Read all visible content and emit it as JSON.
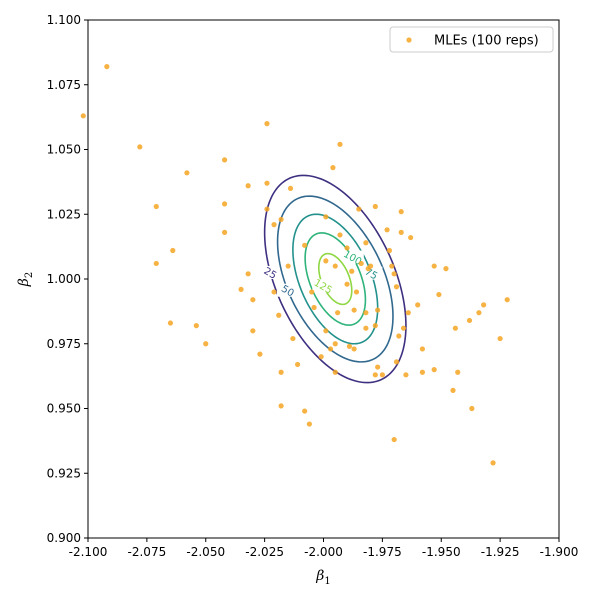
{
  "chart_data": {
    "type": "scatter",
    "title": "",
    "xlabel": "β",
    "xlabel_sub": "1",
    "ylabel": "β",
    "ylabel_sub": "2",
    "xlim": [
      -2.1,
      -1.9
    ],
    "ylim": [
      0.9,
      1.1
    ],
    "x_ticks": [
      "-2.100",
      "-2.075",
      "-2.050",
      "-2.025",
      "-2.000",
      "-1.975",
      "-1.950",
      "-1.925",
      "-1.900"
    ],
    "y_ticks": [
      "0.900",
      "0.925",
      "0.950",
      "0.975",
      "1.000",
      "1.025",
      "1.050",
      "1.075",
      "1.100"
    ],
    "x_tick_values": [
      -2.1,
      -2.075,
      -2.05,
      -2.025,
      -2.0,
      -1.975,
      -1.95,
      -1.925,
      -1.9
    ],
    "y_tick_values": [
      0.9,
      0.925,
      0.95,
      0.975,
      1.0,
      1.025,
      1.05,
      1.075,
      1.1
    ],
    "grid": false,
    "legend": {
      "position": "top-right",
      "entries": [
        {
          "label": "MLEs (100 reps)",
          "color": "#f5a623"
        }
      ]
    },
    "series": [
      {
        "name": "MLEs (100 reps)",
        "color": "#f5a623",
        "points": [
          [
            -2.102,
            1.063
          ],
          [
            -2.092,
            1.082
          ],
          [
            -2.078,
            1.051
          ],
          [
            -2.071,
            1.028
          ],
          [
            -2.071,
            1.006
          ],
          [
            -2.064,
            1.011
          ],
          [
            -2.065,
            0.983
          ],
          [
            -2.058,
            1.041
          ],
          [
            -2.054,
            0.982
          ],
          [
            -2.05,
            0.975
          ],
          [
            -2.042,
            1.046
          ],
          [
            -2.042,
            1.029
          ],
          [
            -2.042,
            1.018
          ],
          [
            -2.035,
            0.996
          ],
          [
            -2.032,
            1.036
          ],
          [
            -2.032,
            1.002
          ],
          [
            -2.03,
            0.992
          ],
          [
            -2.03,
            0.98
          ],
          [
            -2.027,
            0.971
          ],
          [
            -2.024,
            1.06
          ],
          [
            -2.024,
            1.037
          ],
          [
            -2.024,
            1.027
          ],
          [
            -2.021,
            1.021
          ],
          [
            -2.021,
            0.995
          ],
          [
            -2.019,
            0.986
          ],
          [
            -2.018,
            1.023
          ],
          [
            -2.018,
            0.964
          ],
          [
            -2.018,
            0.951
          ],
          [
            -2.014,
            1.035
          ],
          [
            -2.013,
            0.977
          ],
          [
            -2.011,
            0.967
          ],
          [
            -2.008,
            1.013
          ],
          [
            -2.008,
            0.949
          ],
          [
            -2.006,
            0.944
          ],
          [
            -2.004,
            0.989
          ],
          [
            -2.001,
            0.97
          ],
          [
            -1.999,
            1.024
          ],
          [
            -1.999,
            1.007
          ],
          [
            -1.999,
            0.98
          ],
          [
            -1.997,
            0.973
          ],
          [
            -1.996,
            1.043
          ],
          [
            -1.995,
            1.005
          ],
          [
            -1.995,
            0.975
          ],
          [
            -1.995,
            0.964
          ],
          [
            -1.994,
            0.987
          ],
          [
            -1.993,
            1.052
          ],
          [
            -1.993,
            1.017
          ],
          [
            -1.99,
            1.012
          ],
          [
            -1.989,
            0.974
          ],
          [
            -1.988,
            1.003
          ],
          [
            -1.987,
            0.988
          ],
          [
            -1.987,
            0.973
          ],
          [
            -1.986,
            0.995
          ],
          [
            -1.985,
            1.027
          ],
          [
            -1.984,
            1.006
          ],
          [
            -1.982,
            0.981
          ],
          [
            -1.982,
            0.987
          ],
          [
            -1.982,
            1.014
          ],
          [
            -1.981,
            1.004
          ],
          [
            -1.98,
            1.005
          ],
          [
            -1.978,
            1.028
          ],
          [
            -1.978,
            0.982
          ],
          [
            -1.978,
            0.963
          ],
          [
            -1.977,
            0.988
          ],
          [
            -1.977,
            0.966
          ],
          [
            -1.975,
            0.963
          ],
          [
            -1.973,
            1.019
          ],
          [
            -1.972,
            1.011
          ],
          [
            -1.971,
            1.005
          ],
          [
            -1.97,
            1.002
          ],
          [
            -1.97,
            0.938
          ],
          [
            -1.969,
            0.997
          ],
          [
            -1.969,
            0.968
          ],
          [
            -1.968,
            0.978
          ],
          [
            -1.967,
            1.026
          ],
          [
            -1.967,
            1.018
          ],
          [
            -1.966,
            0.981
          ],
          [
            -1.965,
            0.963
          ],
          [
            -1.964,
            0.987
          ],
          [
            -1.963,
            1.016
          ],
          [
            -1.958,
            0.973
          ],
          [
            -1.958,
            0.964
          ],
          [
            -1.953,
            1.005
          ],
          [
            -1.953,
            0.965
          ],
          [
            -1.951,
            0.994
          ],
          [
            -1.948,
            1.004
          ],
          [
            -1.945,
            0.957
          ],
          [
            -1.944,
            0.981
          ],
          [
            -1.943,
            0.964
          ],
          [
            -1.938,
            0.984
          ],
          [
            -1.937,
            0.95
          ],
          [
            -1.934,
            0.987
          ],
          [
            -1.932,
            0.99
          ],
          [
            -1.928,
            0.929
          ],
          [
            -1.922,
            0.992
          ],
          [
            -1.925,
            0.977
          ],
          [
            -1.96,
            0.99
          ],
          [
            -2.005,
            0.995
          ],
          [
            -1.99,
            0.998
          ],
          [
            -2.015,
            1.005
          ]
        ]
      }
    ],
    "contours": {
      "center": [
        -1.995,
        1.0
      ],
      "levels": [
        {
          "label": "25",
          "color": "#3e2f80",
          "sx": 0.03,
          "sy": 0.04
        },
        {
          "label": "50",
          "color": "#31688e",
          "sx": 0.0245,
          "sy": 0.032
        },
        {
          "label": "75",
          "color": "#23918c",
          "sx": 0.018,
          "sy": 0.025
        },
        {
          "label": "100",
          "color": "#2eb37a",
          "sx": 0.0128,
          "sy": 0.0178
        },
        {
          "label": "125",
          "color": "#8fd744",
          "sx": 0.007,
          "sy": 0.0098
        }
      ],
      "correlation": -0.45
    }
  }
}
